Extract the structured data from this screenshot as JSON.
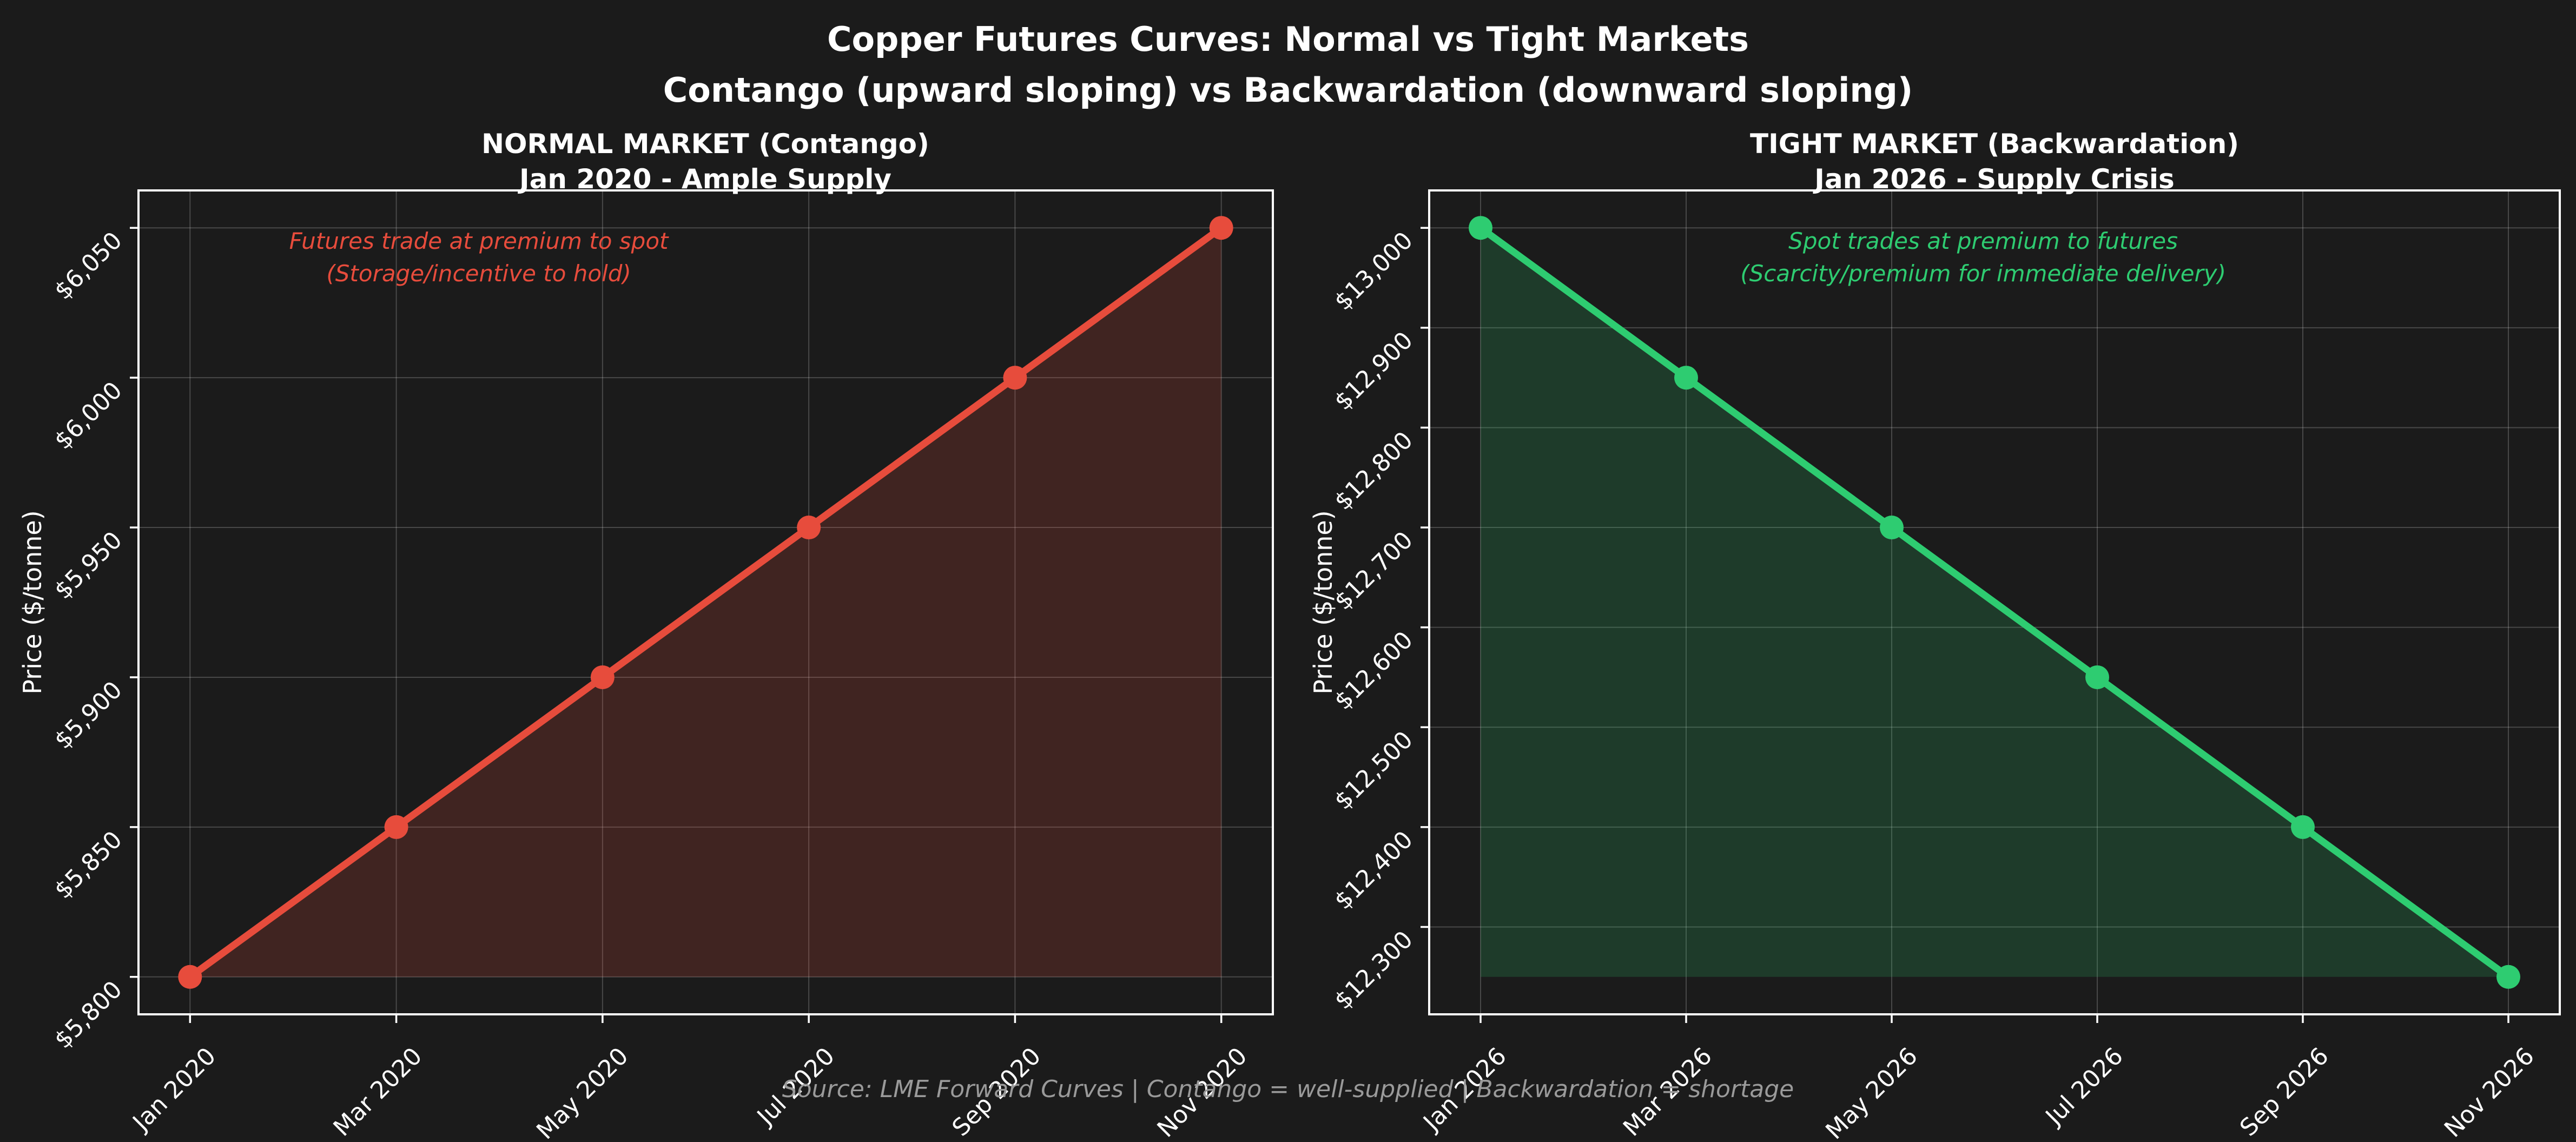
{
  "figure": {
    "title_line1": "Copper Futures Curves: Normal vs Tight Markets",
    "title_line2": "Contango (upward sloping) vs Backwardation (downward sloping)",
    "footer": "Source: LME Forward Curves | Contango = well-supplied | Backwardation = shortage",
    "background_color": "#1b1b1b",
    "text_color": "#ffffff",
    "grid_color": "rgba(255,255,255,0.2)",
    "footer_color": "#9a9a9a"
  },
  "chart_data": [
    {
      "type": "area",
      "title_line1": "NORMAL MARKET (Contango)",
      "title_line2": "Jan 2020 - Ample Supply",
      "categories": [
        "Jan 2020",
        "Mar 2020",
        "May 2020",
        "Jul 2020",
        "Sep 2020",
        "Nov 2020"
      ],
      "values": [
        5800,
        5850,
        5900,
        5950,
        6000,
        6050
      ],
      "ylabel": "Price ($/tonne)",
      "xlabel": "",
      "yticks": [
        5800,
        5850,
        5900,
        5950,
        6000,
        6050
      ],
      "ytick_labels": [
        "$5,800",
        "$5,850",
        "$5,900",
        "$5,950",
        "$6,000",
        "$6,050"
      ],
      "ylim": [
        5787.5,
        6062.5
      ],
      "xlim": [
        -0.25,
        5.25
      ],
      "grid": true,
      "legend": "none",
      "annotation_line1": "Futures trade at premium to spot",
      "annotation_line2": "(Storage/incentive to hold)",
      "line_color": "#e74c3c",
      "fill_color": "rgba(231,76,60,0.18)",
      "annotation_color": "#e74c3c"
    },
    {
      "type": "area",
      "title_line1": "TIGHT MARKET (Backwardation)",
      "title_line2": "Jan 2026 - Supply Crisis",
      "categories": [
        "Jan 2026",
        "Mar 2026",
        "May 2026",
        "Jul 2026",
        "Sep 2026",
        "Nov 2026"
      ],
      "values": [
        13000,
        12850,
        12700,
        12550,
        12400,
        12250
      ],
      "ylabel": "Price ($/tonne)",
      "xlabel": "",
      "yticks": [
        12300,
        12400,
        12500,
        12600,
        12700,
        12800,
        12900,
        13000
      ],
      "ytick_labels": [
        "$12,300",
        "$12,400",
        "$12,500",
        "$12,600",
        "$12,700",
        "$12,800",
        "$12,900",
        "$13,000"
      ],
      "ylim": [
        12212.5,
        13037.5
      ],
      "xlim": [
        -0.25,
        5.25
      ],
      "grid": true,
      "legend": "none",
      "annotation_line1": "Spot trades at premium to futures",
      "annotation_line2": "(Scarcity/premium for immediate delivery)",
      "line_color": "#2ecc71",
      "fill_color": "rgba(46,204,113,0.18)",
      "annotation_color": "#2ecc71"
    }
  ]
}
